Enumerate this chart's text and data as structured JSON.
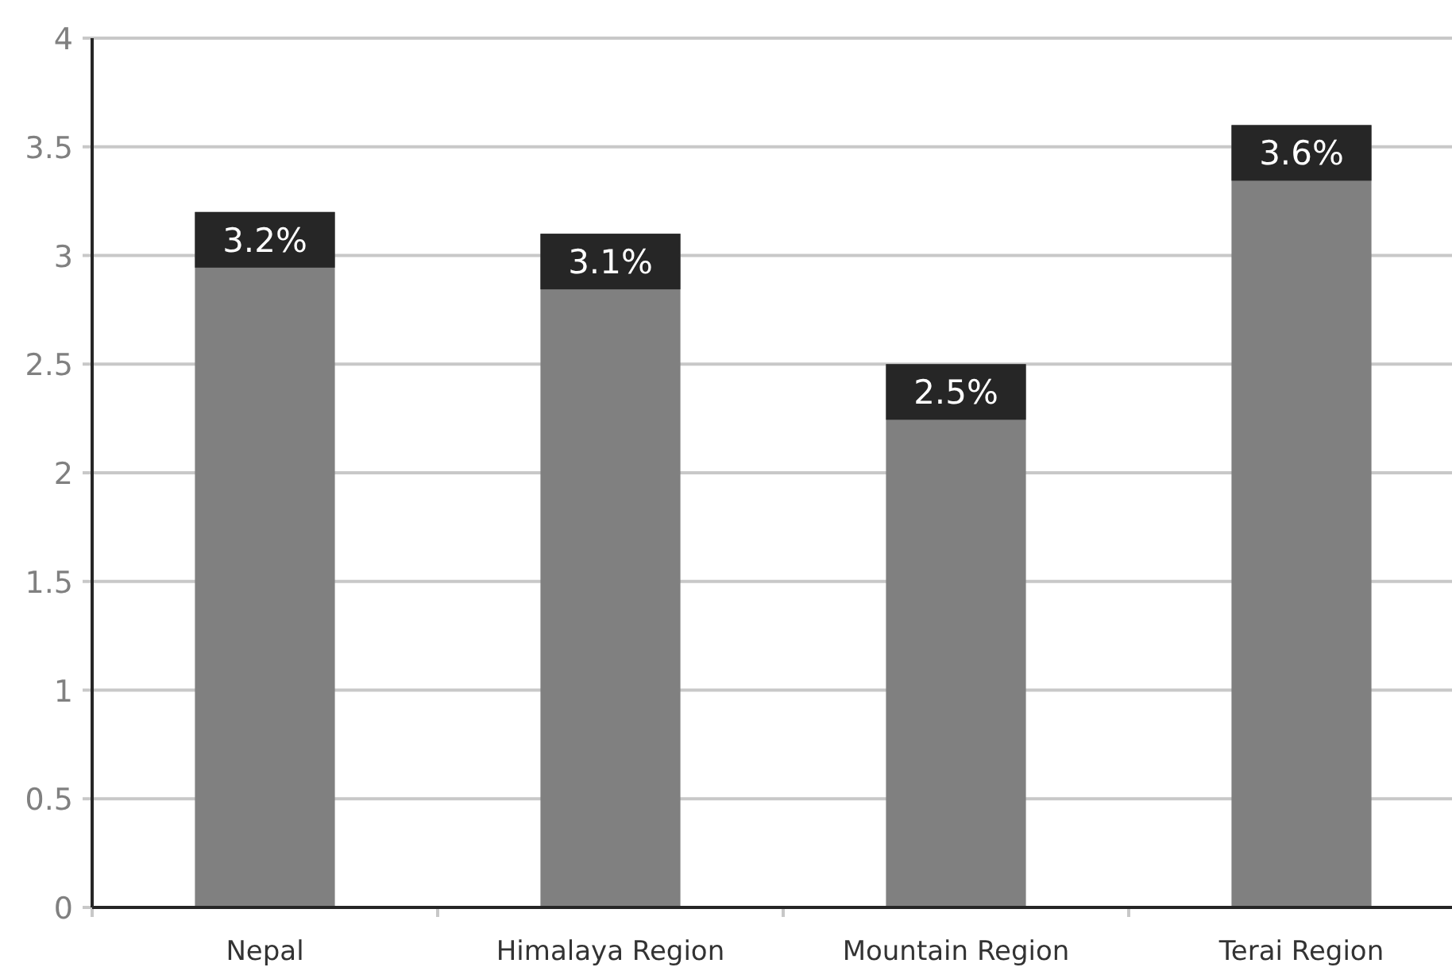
{
  "chart_data": {
    "type": "bar",
    "categories": [
      "Nepal",
      "Himalaya Region",
      "Mountain Region",
      "Terai Region"
    ],
    "values": [
      3.2,
      3.1,
      2.5,
      3.6
    ],
    "color": "#808080",
    "value_labels": [
      "3.2%",
      "3.1%",
      "2.5%",
      "3.6%"
    ],
    "ylim": [
      0,
      4
    ],
    "yticks": [
      0,
      0.5,
      1,
      1.5,
      2,
      2.5,
      3,
      3.5,
      4
    ],
    "grid": "y"
  }
}
